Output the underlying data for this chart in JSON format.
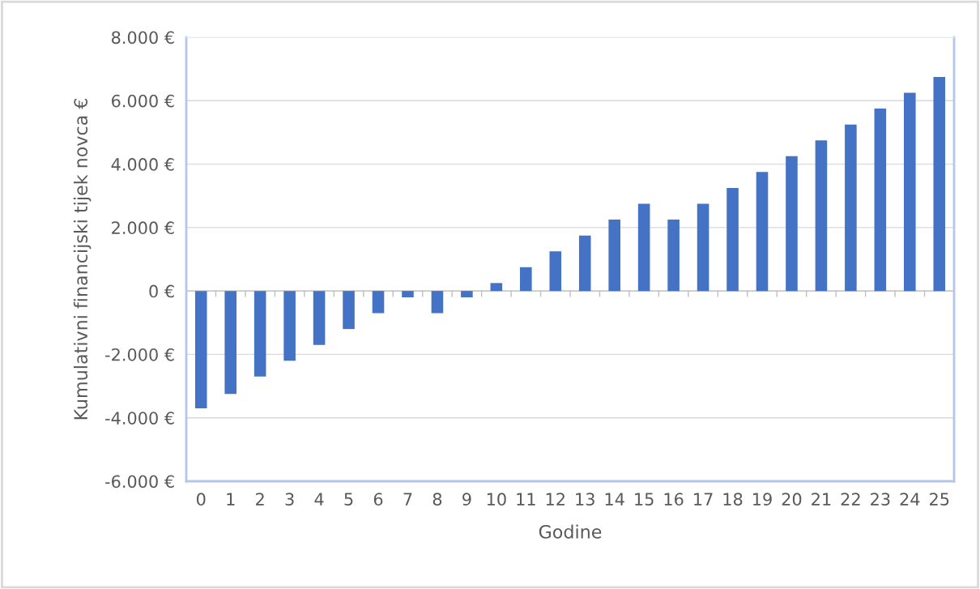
{
  "chart_data": {
    "type": "bar",
    "xlabel": "Godine",
    "ylabel": "Kumulativni financijski tijek novca €",
    "categories": [
      "0",
      "1",
      "2",
      "3",
      "4",
      "5",
      "6",
      "7",
      "8",
      "9",
      "10",
      "11",
      "12",
      "13",
      "14",
      "15",
      "16",
      "17",
      "18",
      "19",
      "20",
      "21",
      "22",
      "23",
      "24",
      "25"
    ],
    "values": [
      -3700,
      -3250,
      -2700,
      -2200,
      -1700,
      -1200,
      -700,
      -200,
      -700,
      -200,
      250,
      750,
      1250,
      1750,
      2250,
      2750,
      2250,
      2750,
      3250,
      3750,
      4250,
      4750,
      5250,
      5750,
      6250,
      6750
    ],
    "color": "#4472c4",
    "ylim": [
      -6000,
      8000
    ],
    "yticks": [
      {
        "value": -6000,
        "label": "-6.000 €"
      },
      {
        "value": -4000,
        "label": "-4.000 €"
      },
      {
        "value": -2000,
        "label": "-2.000 €"
      },
      {
        "value": 0,
        "label": "0 €"
      },
      {
        "value": 2000,
        "label": "2.000 €"
      },
      {
        "value": 4000,
        "label": "4.000 €"
      },
      {
        "value": 6000,
        "label": "6.000 €"
      },
      {
        "value": 8000,
        "label": "8.000 €"
      }
    ],
    "grid": "y"
  }
}
